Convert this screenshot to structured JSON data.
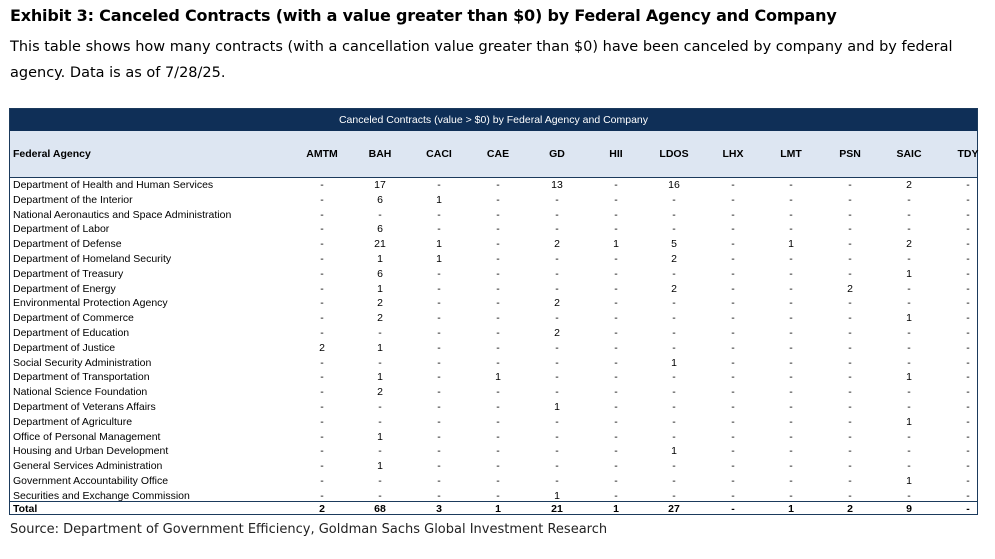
{
  "exhibit": {
    "title": "Exhibit 3: Canceled Contracts (with a value greater than $0) by Federal Agency and Company",
    "description": "This table shows how many contracts (with a cancellation value greater than $0) have been canceled by company and by federal agency. Data is as of 7/28/25.",
    "source": "Source: Department of Government Efficiency, Goldman Sachs Global Investment Research"
  },
  "colors": {
    "banner": "#0f2f57",
    "header_bg": "#dde6f2"
  },
  "chart_data": {
    "type": "table",
    "title": "Canceled Contracts (value > $0) by Federal Agency and Company",
    "columns": [
      "Federal Agency",
      "AMTM",
      "BAH",
      "CACI",
      "CAE",
      "GD",
      "HII",
      "LDOS",
      "LHX",
      "LMT",
      "PSN",
      "SAIC",
      "TDY"
    ],
    "rows": [
      [
        "Department of Health and Human Services",
        "-",
        "17",
        "-",
        "-",
        "13",
        "-",
        "16",
        "-",
        "-",
        "-",
        "2",
        "-"
      ],
      [
        "Department of the Interior",
        "-",
        "6",
        "1",
        "-",
        "-",
        "-",
        "-",
        "-",
        "-",
        "-",
        "-",
        "-"
      ],
      [
        "National Aeronautics and Space Administration",
        "-",
        "-",
        "-",
        "-",
        "-",
        "-",
        "-",
        "-",
        "-",
        "-",
        "-",
        "-"
      ],
      [
        "Department of Labor",
        "-",
        "6",
        "-",
        "-",
        "-",
        "-",
        "-",
        "-",
        "-",
        "-",
        "-",
        "-"
      ],
      [
        "Department of Defense",
        "-",
        "21",
        "1",
        "-",
        "2",
        "1",
        "5",
        "-",
        "1",
        "-",
        "2",
        "-"
      ],
      [
        "Department of Homeland Security",
        "-",
        "1",
        "1",
        "-",
        "-",
        "-",
        "2",
        "-",
        "-",
        "-",
        "-",
        "-"
      ],
      [
        "Department of Treasury",
        "-",
        "6",
        "-",
        "-",
        "-",
        "-",
        "-",
        "-",
        "-",
        "-",
        "1",
        "-"
      ],
      [
        "Department of Energy",
        "-",
        "1",
        "-",
        "-",
        "-",
        "-",
        "2",
        "-",
        "-",
        "2",
        "-",
        "-"
      ],
      [
        "Environmental Protection Agency",
        "-",
        "2",
        "-",
        "-",
        "2",
        "-",
        "-",
        "-",
        "-",
        "-",
        "-",
        "-"
      ],
      [
        "Department of Commerce",
        "-",
        "2",
        "-",
        "-",
        "-",
        "-",
        "-",
        "-",
        "-",
        "-",
        "1",
        "-"
      ],
      [
        "Department of Education",
        "-",
        "-",
        "-",
        "-",
        "2",
        "-",
        "-",
        "-",
        "-",
        "-",
        "-",
        "-"
      ],
      [
        "Department of Justice",
        "2",
        "1",
        "-",
        "-",
        "-",
        "-",
        "-",
        "-",
        "-",
        "-",
        "-",
        "-"
      ],
      [
        "Social Security Administration",
        "-",
        "-",
        "-",
        "-",
        "-",
        "-",
        "1",
        "-",
        "-",
        "-",
        "-",
        "-"
      ],
      [
        "Department of Transportation",
        "-",
        "1",
        "-",
        "1",
        "-",
        "-",
        "-",
        "-",
        "-",
        "-",
        "1",
        "-"
      ],
      [
        "National Science Foundation",
        "-",
        "2",
        "-",
        "-",
        "-",
        "-",
        "-",
        "-",
        "-",
        "-",
        "-",
        "-"
      ],
      [
        "Department of Veterans Affairs",
        "-",
        "-",
        "-",
        "-",
        "1",
        "-",
        "-",
        "-",
        "-",
        "-",
        "-",
        "-"
      ],
      [
        "Department of Agriculture",
        "-",
        "-",
        "-",
        "-",
        "-",
        "-",
        "-",
        "-",
        "-",
        "-",
        "1",
        "-"
      ],
      [
        "Office of Personal Management",
        "-",
        "1",
        "-",
        "-",
        "-",
        "-",
        "-",
        "-",
        "-",
        "-",
        "-",
        "-"
      ],
      [
        "Housing and Urban Development",
        "-",
        "-",
        "-",
        "-",
        "-",
        "-",
        "1",
        "-",
        "-",
        "-",
        "-",
        "-"
      ],
      [
        "General Services Administration",
        "-",
        "1",
        "-",
        "-",
        "-",
        "-",
        "-",
        "-",
        "-",
        "-",
        "-",
        "-"
      ],
      [
        "Government Accountability Office",
        "-",
        "-",
        "-",
        "-",
        "-",
        "-",
        "-",
        "-",
        "-",
        "-",
        "1",
        "-"
      ],
      [
        "Securities and Exchange Commission",
        "-",
        "-",
        "-",
        "-",
        "1",
        "-",
        "-",
        "-",
        "-",
        "-",
        "-",
        "-"
      ]
    ],
    "total": [
      "Total",
      "2",
      "68",
      "3",
      "1",
      "21",
      "1",
      "27",
      "-",
      "1",
      "2",
      "9",
      "-"
    ]
  }
}
